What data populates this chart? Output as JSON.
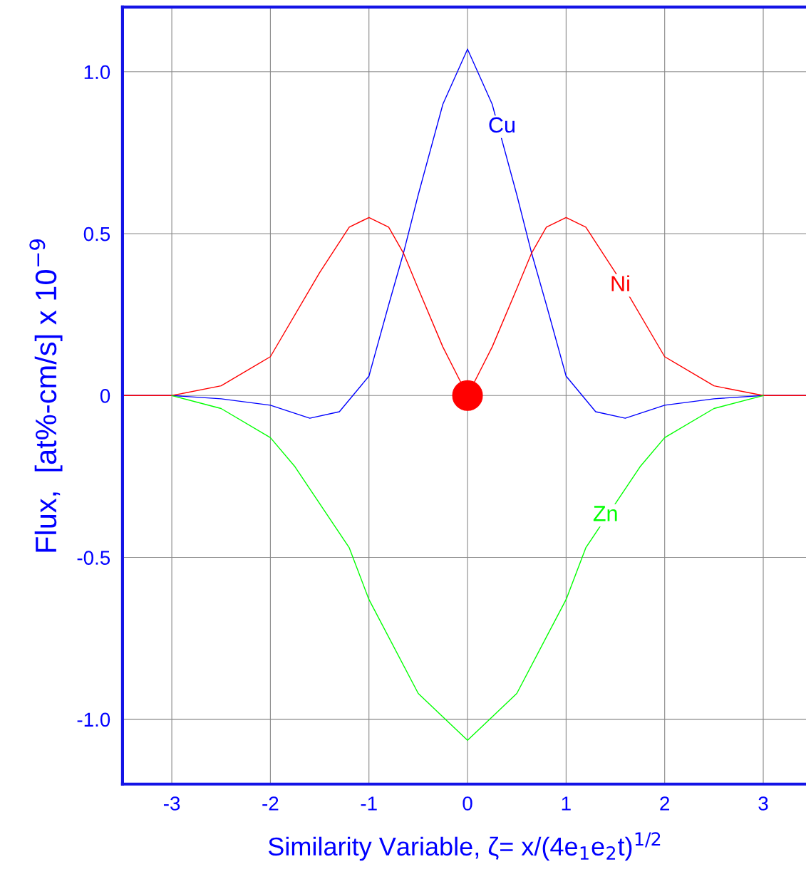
{
  "chart_data": {
    "type": "line",
    "xlabel": "Similarity Variable, ζ= x/(4e$_{1}$e$_{2}$t)$^{1/2}$",
    "ylabel": "Flux,  [at%-cm/s] x 10$^{−9}$",
    "xlim": [
      -3.5,
      3.45
    ],
    "ylim": [
      -1.2,
      1.2
    ],
    "xticks": [
      -3,
      -2,
      -1,
      0,
      1,
      2,
      3
    ],
    "yticks": [
      {
        "value": 1.0,
        "label": "1.0"
      },
      {
        "value": 0.5,
        "label": "0.5"
      },
      0,
      {
        "value": -0.5,
        "label": "-0.5"
      },
      {
        "value": -1.0,
        "label": "-1.0"
      }
    ],
    "grid": true,
    "series": [
      {
        "color": "#0000ff",
        "x": [
          -3.5,
          -3,
          -2.5,
          -2,
          -1.6,
          -1.3,
          -1.0,
          -0.8,
          -0.65,
          -0.5,
          -0.25,
          0,
          0.25,
          0.5,
          0.65,
          0.8,
          1.0,
          1.3,
          1.6,
          2,
          2.5,
          3,
          3.45
        ],
        "values": [
          0,
          0,
          -0.01,
          -0.03,
          -0.07,
          -0.05,
          0.06,
          0.28,
          0.44,
          0.62,
          0.9,
          1.07,
          0.9,
          0.62,
          0.44,
          0.28,
          0.06,
          -0.05,
          -0.07,
          -0.03,
          -0.01,
          0,
          0
        ]
      },
      {
        "color": "#ff0000",
        "x": [
          -3.5,
          -3,
          -2.5,
          -2,
          -1.5,
          -1.2,
          -1,
          -0.8,
          -0.65,
          -0.5,
          -0.25,
          0,
          0.25,
          0.5,
          0.65,
          0.8,
          1,
          1.2,
          1.5,
          2,
          2.5,
          3,
          3.45
        ],
        "values": [
          0,
          0,
          0.03,
          0.12,
          0.38,
          0.52,
          0.55,
          0.52,
          0.44,
          0.33,
          0.15,
          0,
          0.15,
          0.33,
          0.44,
          0.52,
          0.55,
          0.52,
          0.38,
          0.12,
          0.03,
          0,
          0
        ]
      },
      {
        "color": "#00ff00",
        "x": [
          -3,
          -2.5,
          -2,
          -1.75,
          -1.2,
          -1,
          -0.5,
          0,
          0.5,
          1,
          1.2,
          1.75,
          2,
          2.5,
          3
        ],
        "values": [
          0,
          -0.04,
          -0.13,
          -0.22,
          -0.47,
          -0.63,
          -0.92,
          -1.065,
          -0.92,
          -0.63,
          -0.47,
          -0.22,
          -0.13,
          -0.04,
          0
        ]
      },
      {
        "type": "scatter",
        "color": "#ff0000",
        "x": [
          0
        ],
        "values": [
          0
        ],
        "marker": "circle"
      }
    ],
    "annotations": [
      {
        "text": "Cu",
        "x": 0.35,
        "y": 0.83
      },
      {
        "text": "Ni",
        "x": 1.55,
        "y": 0.34
      },
      {
        "text": "Zn",
        "x": 1.4,
        "y": -0.37
      }
    ]
  }
}
